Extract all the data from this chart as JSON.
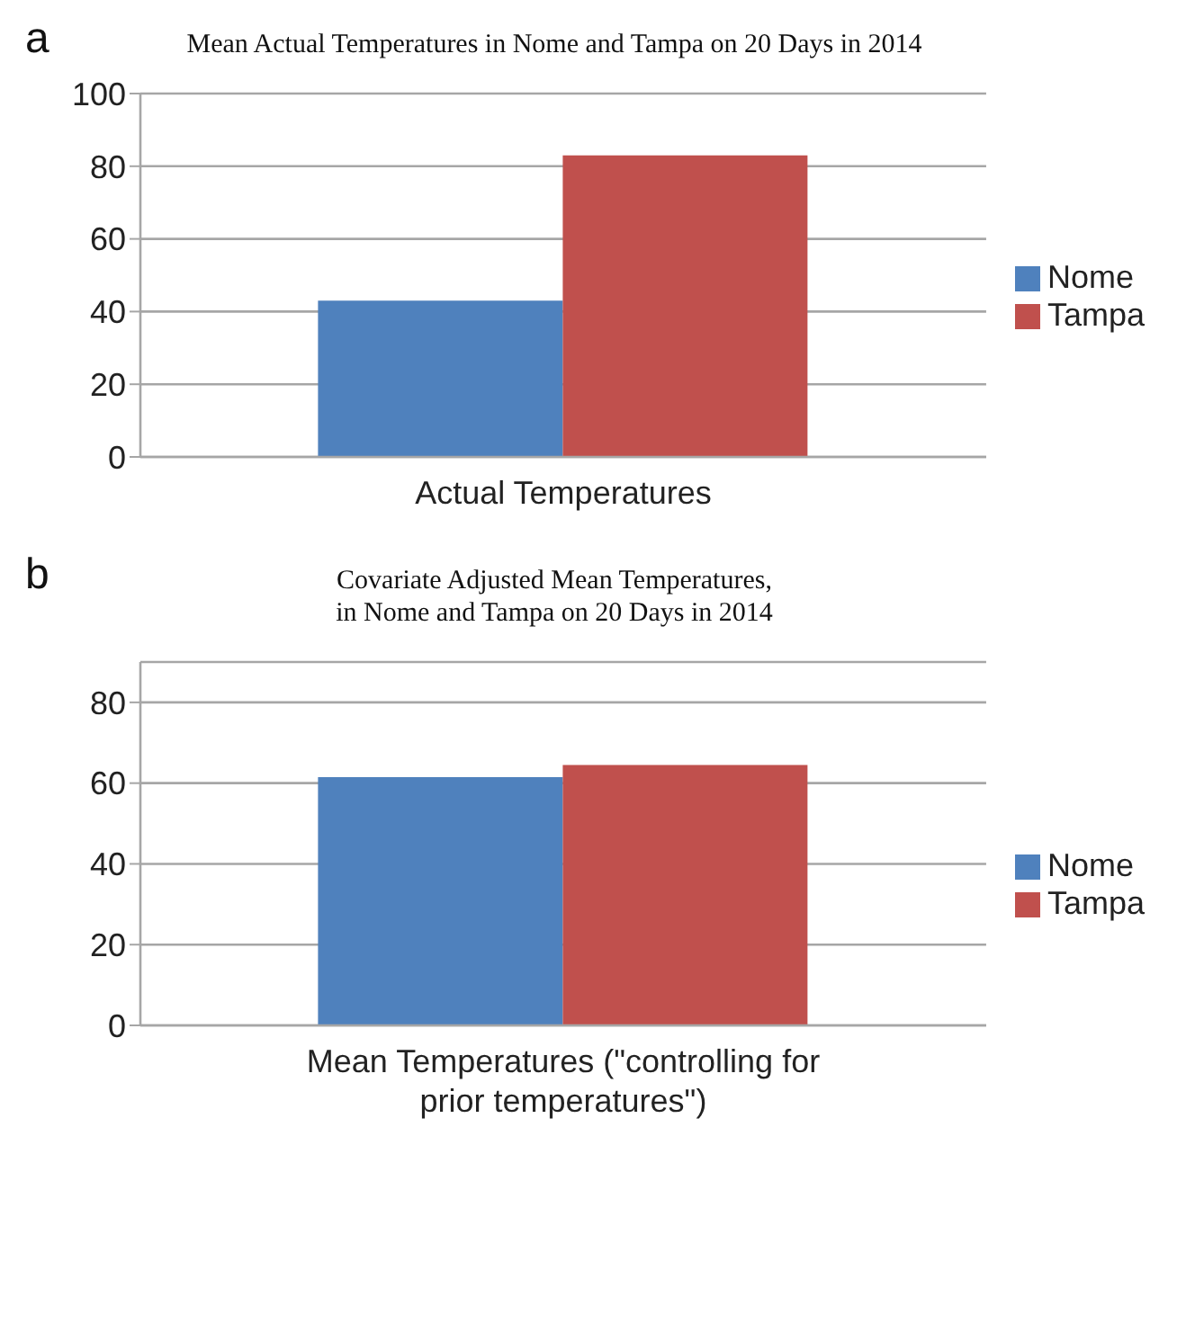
{
  "chart_data": [
    {
      "type": "bar",
      "title": "Mean Actual Temperatures in Nome and Tampa on 20 Days in 2014",
      "annotations": [
        "a"
      ],
      "categories": [
        "Actual Temperatures"
      ],
      "series": [
        {
          "name": "Nome",
          "color": "#4f81bd",
          "values": [
            43
          ]
        },
        {
          "name": "Tampa",
          "color": "#c0504d",
          "values": [
            83
          ]
        }
      ],
      "ylim": [
        0,
        100
      ],
      "yticks": [
        0,
        20,
        40,
        60,
        80,
        100
      ],
      "grid": "y",
      "legend": "right"
    },
    {
      "type": "bar",
      "title": "Covariate Adjusted Mean Temperatures,\nin Nome and Tampa on 20 Days in 2014",
      "annotations": [
        "b"
      ],
      "categories": [
        "Mean Temperatures (\"controlling for prior temperatures\")"
      ],
      "series": [
        {
          "name": "Nome",
          "color": "#4f81bd",
          "values": [
            61.5
          ]
        },
        {
          "name": "Tampa",
          "color": "#c0504d",
          "values": [
            64.5
          ]
        }
      ],
      "ylim": [
        0,
        90
      ],
      "yticks": [
        0,
        20,
        40,
        60,
        80
      ],
      "grid": "y",
      "legend": "right"
    }
  ]
}
